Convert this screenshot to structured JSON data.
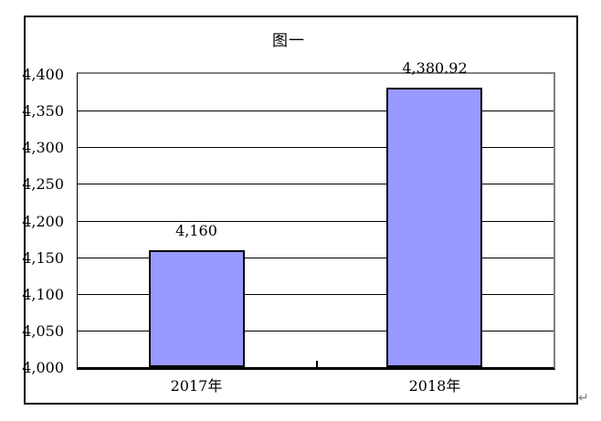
{
  "page": {
    "background": "#ffffff",
    "paragraph_mark": "↵"
  },
  "chart_data": {
    "type": "bar",
    "title": "图一",
    "categories": [
      "2017年",
      "2018年"
    ],
    "values": [
      4160,
      4380.92
    ],
    "value_labels": [
      "4,160",
      "4,380.92"
    ],
    "xlabel": "",
    "ylabel": "",
    "ylim": [
      4000,
      4400
    ],
    "ytick_step": 50,
    "ytick_labels": [
      "4,000",
      "4,050",
      "4,100",
      "4,150",
      "4,200",
      "4,250",
      "4,300",
      "4,350",
      "4,400"
    ],
    "grid": true,
    "legend": false,
    "colors": {
      "bar_fill": "#9999FF",
      "bar_border": "#000000",
      "plot_border_gray": "#808080",
      "gridline": "#000000",
      "axis": "#000000",
      "text": "#000000",
      "paragraph_mark": "#808080",
      "frame": "#000000"
    }
  }
}
